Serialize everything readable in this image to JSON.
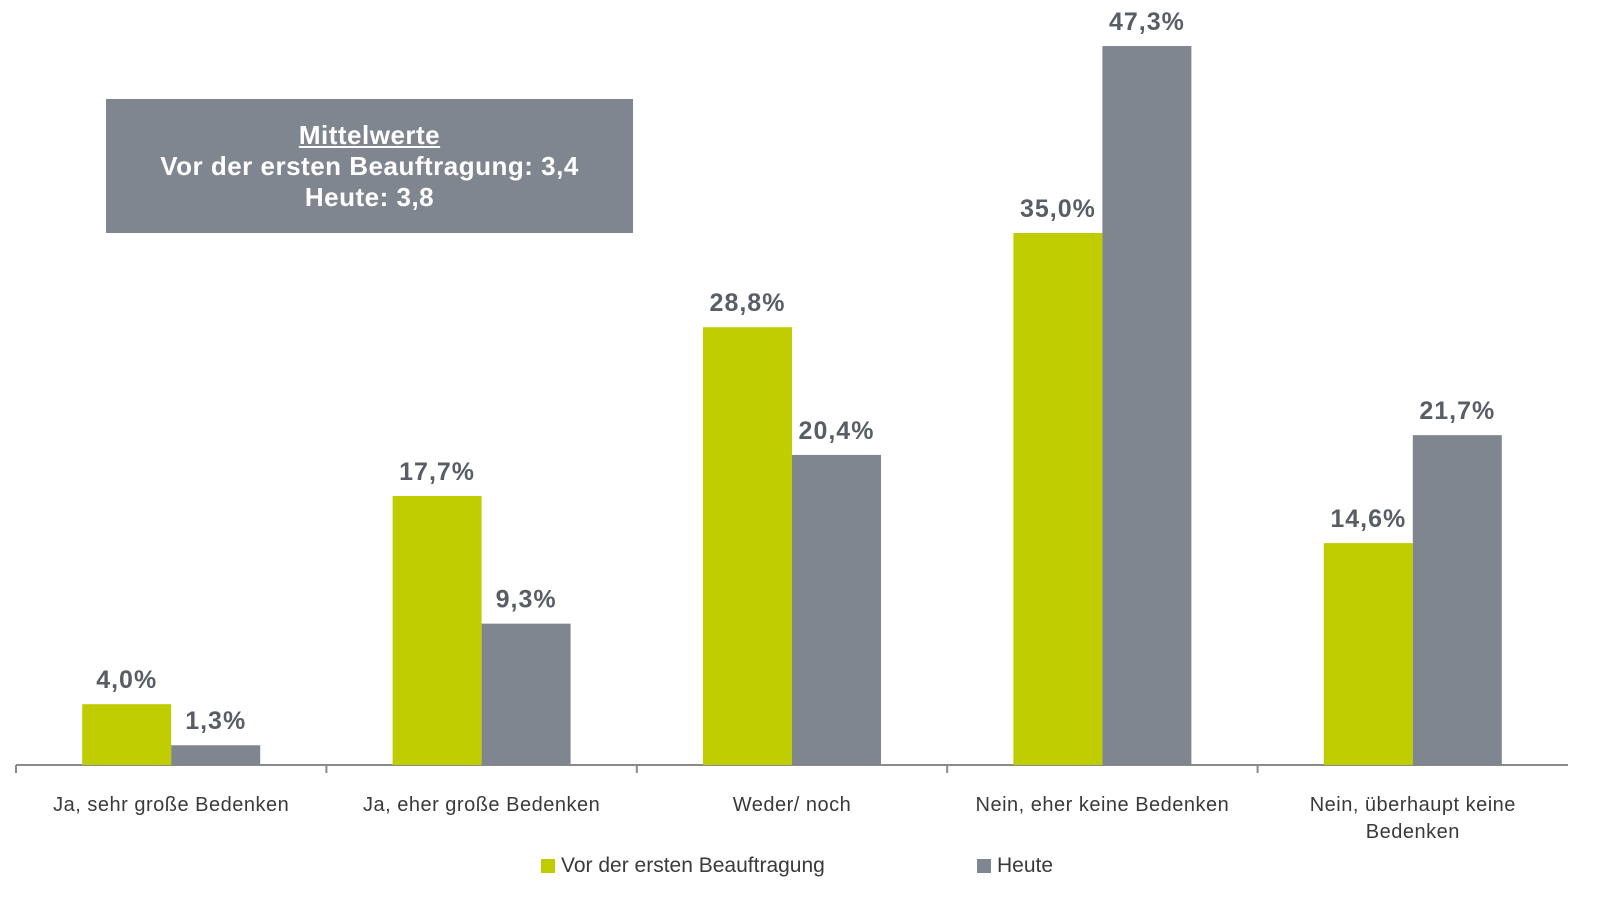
{
  "chart_data": {
    "type": "bar",
    "categories": [
      "Ja, sehr große Bedenken",
      "Ja, eher große Bedenken",
      "Weder/ noch",
      "Nein, eher keine Bedenken",
      "Nein, überhaupt keine Bedenken"
    ],
    "series": [
      {
        "name": "Vor der ersten Beauftragung",
        "color": "#bfcc00",
        "values": [
          4.0,
          17.7,
          28.8,
          35.0,
          14.6
        ],
        "value_labels": [
          "4,0%",
          "17,7%",
          "28,8%",
          "35,0%",
          "14,6%"
        ]
      },
      {
        "name": "Heute",
        "color": "#80868f",
        "values": [
          1.3,
          9.3,
          20.4,
          47.3,
          21.7
        ],
        "value_labels": [
          "1,3%",
          "9,3%",
          "20,4%",
          "47,3%",
          "21,7%"
        ]
      }
    ],
    "ylim": [
      0,
      50
    ],
    "annotation": [
      "Mittelwerte",
      "Vor der ersten Beauftragung: 3,4",
      "Heute: 3,8"
    ]
  }
}
